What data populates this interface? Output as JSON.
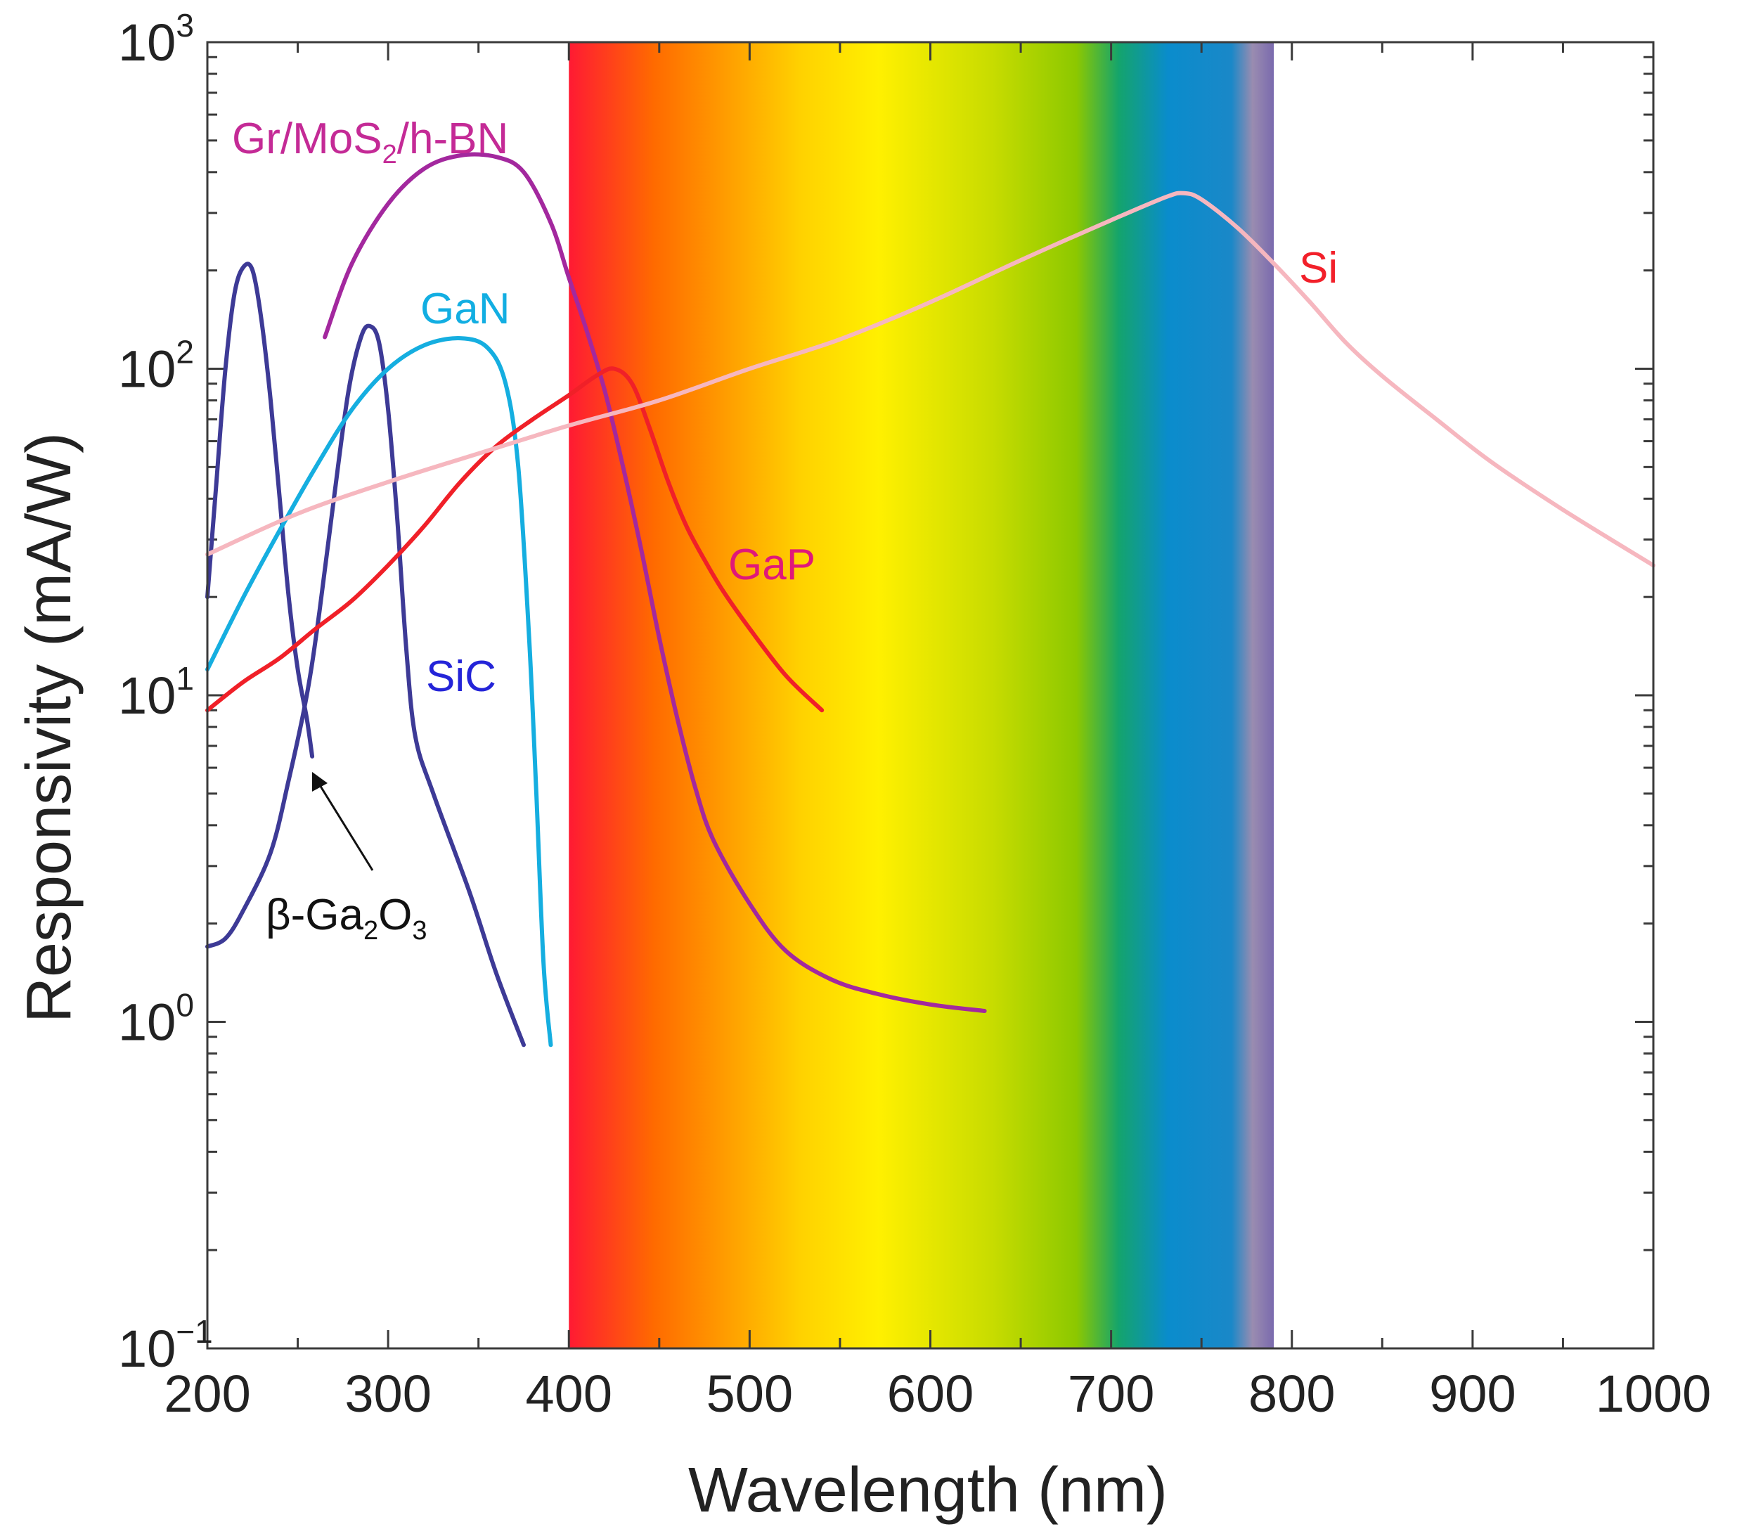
{
  "chart_data": {
    "type": "line",
    "title": "",
    "xlabel": "Wavelength (nm)",
    "ylabel": "Responsivity (mA/W)",
    "xlim": [
      200,
      1000
    ],
    "ylim": [
      0.1,
      1000
    ],
    "yscale": "log",
    "x_ticks": [
      "200",
      "300",
      "400",
      "500",
      "600",
      "700",
      "800",
      "900",
      "1000"
    ],
    "y_ticks": [
      {
        "base": "10",
        "exp": "3",
        "value": 1000
      },
      {
        "base": "10",
        "exp": "2",
        "value": 100
      },
      {
        "base": "10",
        "exp": "1",
        "value": 10
      },
      {
        "base": "10",
        "exp": "0",
        "value": 1
      },
      {
        "base": "10",
        "exp": "−1",
        "value": 0.1
      }
    ],
    "visible_band": {
      "range_nm": [
        400,
        790
      ],
      "colors": [
        "#ff1a33",
        "#ff6a00",
        "#ffd200",
        "#fff000",
        "#c8dc00",
        "#8cc800",
        "#14a46c",
        "#0a8ccc",
        "#1a88c8",
        "#9a8cb0",
        "#7a6aae"
      ],
      "stops": [
        0,
        0.12,
        0.33,
        0.44,
        0.6,
        0.72,
        0.78,
        0.85,
        0.94,
        0.97,
        1.0
      ]
    },
    "series": [
      {
        "name": "β-Ga2O3",
        "color": "#3d3a96",
        "points": [
          [
            200,
            20
          ],
          [
            205,
            45
          ],
          [
            210,
            100
          ],
          [
            215,
            170
          ],
          [
            220,
            205
          ],
          [
            225,
            200
          ],
          [
            230,
            140
          ],
          [
            235,
            80
          ],
          [
            240,
            40
          ],
          [
            245,
            20
          ],
          [
            250,
            12
          ],
          [
            255,
            8.5
          ],
          [
            258,
            6.5
          ]
        ]
      },
      {
        "name": "SiC",
        "color": "#3d3a96",
        "points": [
          [
            200,
            1.7
          ],
          [
            210,
            1.8
          ],
          [
            220,
            2.2
          ],
          [
            235,
            3.3
          ],
          [
            245,
            5.5
          ],
          [
            255,
            10
          ],
          [
            262,
            18
          ],
          [
            270,
            40
          ],
          [
            278,
            85
          ],
          [
            285,
            125
          ],
          [
            290,
            135
          ],
          [
            295,
            120
          ],
          [
            300,
            75
          ],
          [
            305,
            35
          ],
          [
            310,
            14
          ],
          [
            315,
            7.5
          ],
          [
            325,
            5
          ],
          [
            345,
            2.5
          ],
          [
            360,
            1.4
          ],
          [
            375,
            0.85
          ]
        ]
      },
      {
        "name": "GaN",
        "color": "#15aee0",
        "points": [
          [
            200,
            12
          ],
          [
            220,
            20
          ],
          [
            240,
            32
          ],
          [
            260,
            50
          ],
          [
            280,
            75
          ],
          [
            300,
            100
          ],
          [
            320,
            118
          ],
          [
            340,
            124
          ],
          [
            355,
            116
          ],
          [
            365,
            90
          ],
          [
            372,
            50
          ],
          [
            378,
            15
          ],
          [
            382,
            5
          ],
          [
            386,
            1.5
          ],
          [
            390,
            0.85
          ]
        ]
      },
      {
        "name": "Gr/MoS2/h-BN",
        "color": "#a3289e",
        "points": [
          [
            265,
            125
          ],
          [
            280,
            210
          ],
          [
            300,
            320
          ],
          [
            320,
            410
          ],
          [
            340,
            450
          ],
          [
            360,
            445
          ],
          [
            375,
            400
          ],
          [
            390,
            280
          ],
          [
            400,
            190
          ],
          [
            410,
            130
          ],
          [
            420,
            85
          ],
          [
            430,
            50
          ],
          [
            440,
            28
          ],
          [
            450,
            15
          ],
          [
            460,
            8.5
          ],
          [
            470,
            5.2
          ],
          [
            480,
            3.6
          ],
          [
            500,
            2.3
          ],
          [
            520,
            1.65
          ],
          [
            545,
            1.35
          ],
          [
            570,
            1.22
          ],
          [
            600,
            1.13
          ],
          [
            630,
            1.08
          ]
        ]
      },
      {
        "name": "GaP",
        "color": "#f02028",
        "points": [
          [
            200,
            9
          ],
          [
            220,
            11
          ],
          [
            240,
            13
          ],
          [
            260,
            16
          ],
          [
            280,
            19.5
          ],
          [
            300,
            25
          ],
          [
            320,
            33
          ],
          [
            340,
            45
          ],
          [
            360,
            58
          ],
          [
            380,
            70
          ],
          [
            400,
            83
          ],
          [
            415,
            95
          ],
          [
            425,
            100
          ],
          [
            435,
            90
          ],
          [
            445,
            65
          ],
          [
            455,
            45
          ],
          [
            465,
            33
          ],
          [
            475,
            26
          ],
          [
            485,
            21
          ],
          [
            500,
            16
          ],
          [
            520,
            11.5
          ],
          [
            540,
            9
          ]
        ]
      },
      {
        "name": "Si",
        "color": "#f6b7bf",
        "points": [
          [
            200,
            27
          ],
          [
            250,
            36
          ],
          [
            300,
            45
          ],
          [
            350,
            55
          ],
          [
            400,
            67
          ],
          [
            450,
            80
          ],
          [
            500,
            100
          ],
          [
            550,
            123
          ],
          [
            600,
            160
          ],
          [
            650,
            215
          ],
          [
            700,
            285
          ],
          [
            730,
            335
          ],
          [
            740,
            345
          ],
          [
            750,
            330
          ],
          [
            770,
            270
          ],
          [
            790,
            210
          ],
          [
            810,
            160
          ],
          [
            830,
            120
          ],
          [
            850,
            95
          ],
          [
            880,
            70
          ],
          [
            910,
            52
          ],
          [
            950,
            37
          ],
          [
            1000,
            25
          ]
        ]
      }
    ],
    "annotations": [
      {
        "text": "Gr/MoS2/h-BN",
        "series": "Gr/MoS2/h-BN"
      },
      {
        "text": "GaN",
        "series": "GaN"
      },
      {
        "text": "SiC",
        "series": "SiC"
      },
      {
        "text": "GaP",
        "series": "GaP"
      },
      {
        "text": "Si",
        "series": "Si"
      },
      {
        "text": "β-Ga2O3",
        "series": "β-Ga2O3",
        "arrow": true
      }
    ]
  },
  "labels": {
    "gr": {
      "a": "Gr/MoS",
      "sub": "2",
      "b": "/h-BN",
      "color": "#c42a96"
    },
    "gan": {
      "text": "GaN",
      "color": "#12aee2"
    },
    "sic": {
      "text": "SiC",
      "color": "#2424d8"
    },
    "gap": {
      "text": "GaP",
      "color": "#e0187a"
    },
    "si": {
      "text": "Si",
      "color": "#f2202a"
    },
    "ga2o3": {
      "a": "β-Ga",
      "sub1": "2",
      "b": "O",
      "sub2": "3",
      "color": "#111111"
    }
  }
}
